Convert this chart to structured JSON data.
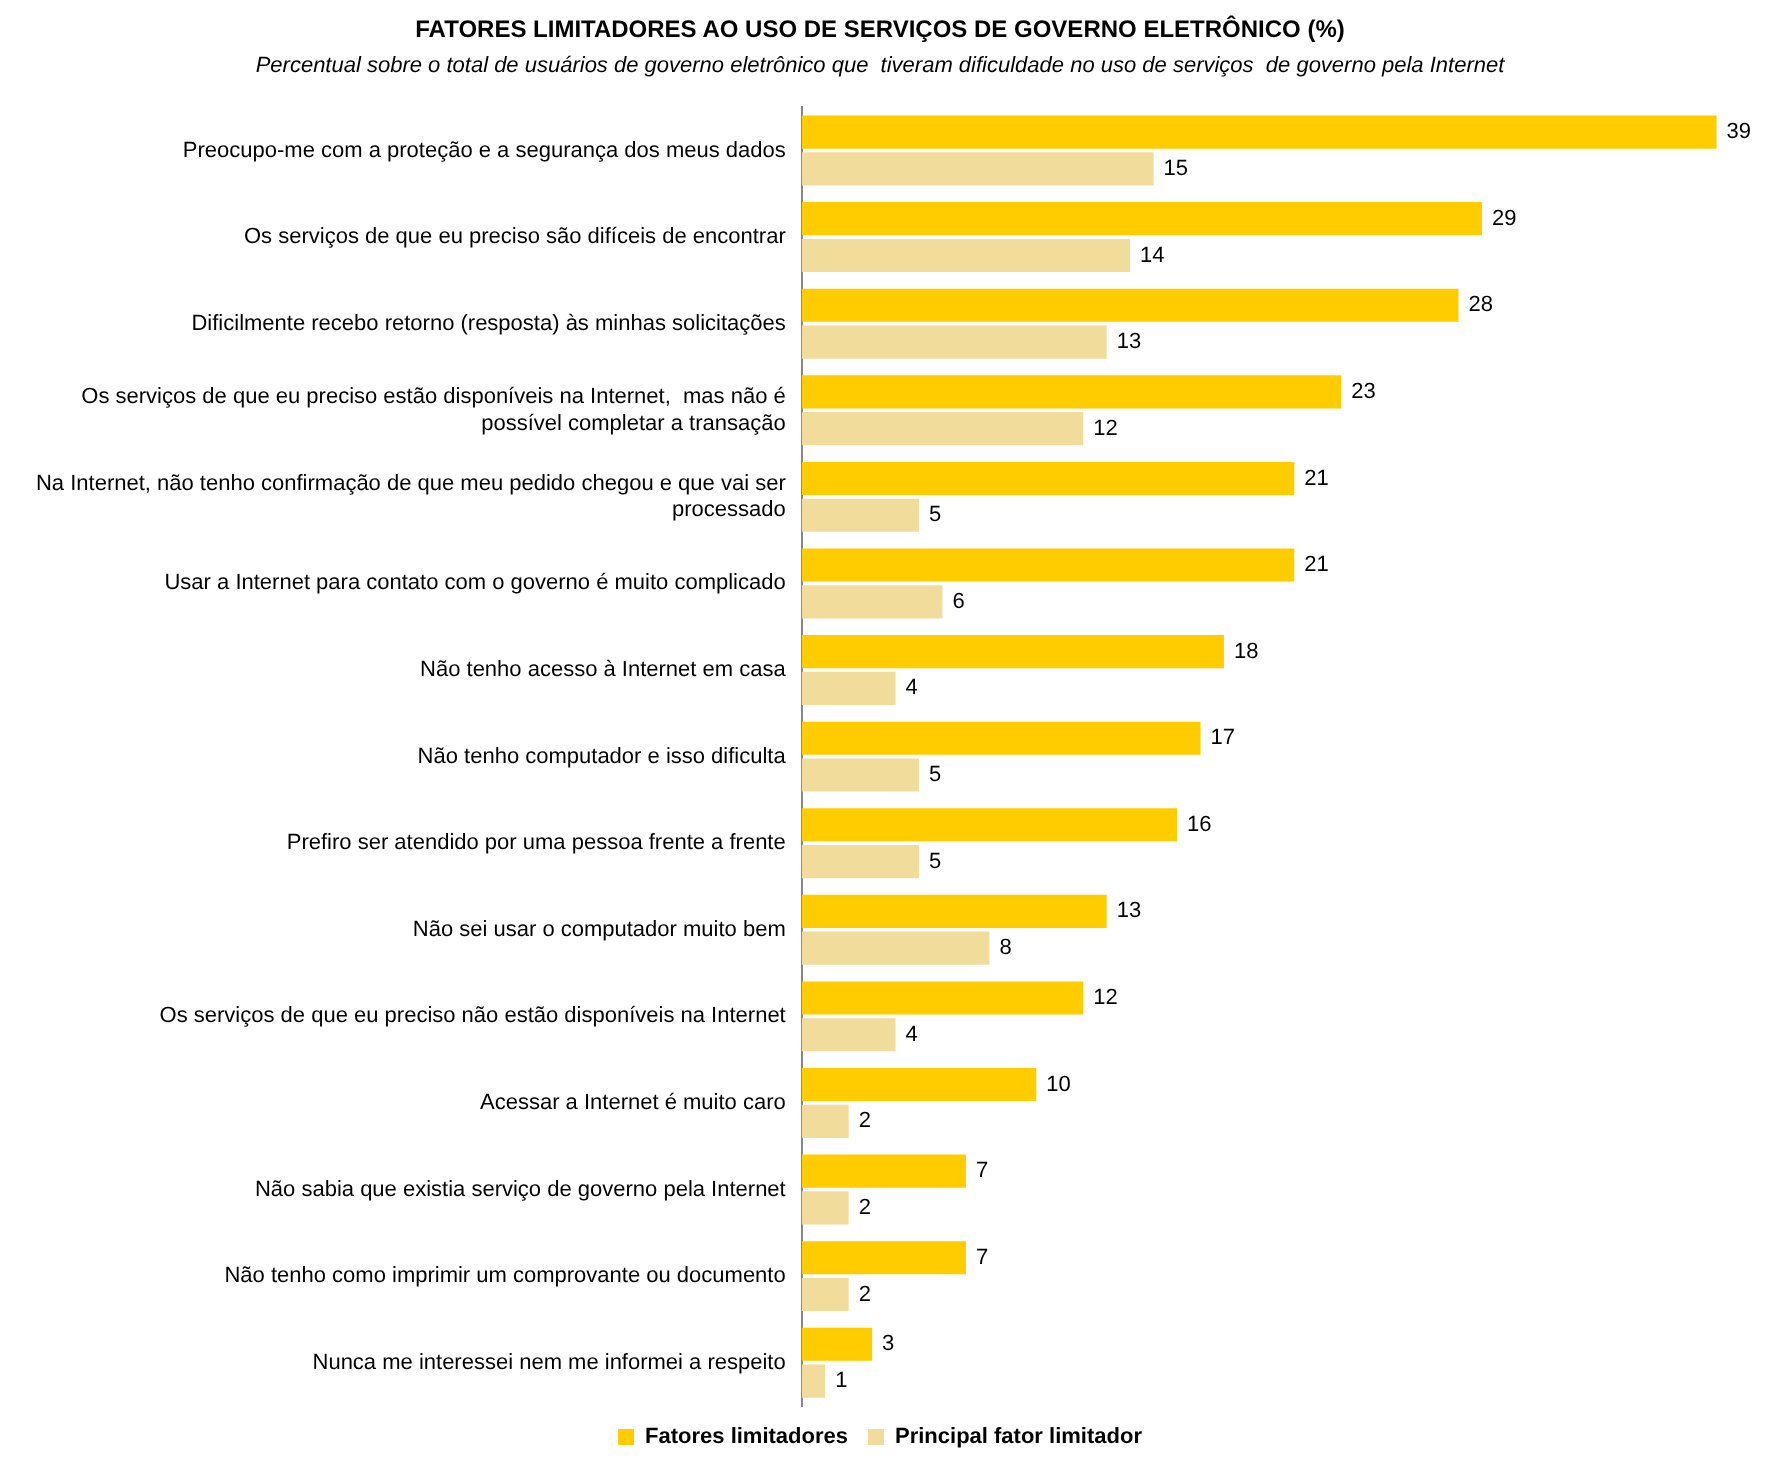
{
  "chart_data": {
    "type": "bar",
    "orientation": "horizontal",
    "title": "FATORES LIMITADORES AO USO DE SERVIÇOS DE GOVERNO ELETRÔNICO (%)",
    "subtitle": "Percentual sobre o total de usuários de governo eletrônico que  tiveram dificuldade no uso de serviços  de governo pela Internet",
    "categories": [
      "Preocupo-me com a proteção e a segurança dos meus dados",
      "Os serviços de que eu preciso são difíceis de encontrar",
      "Dificilmente recebo retorno (resposta) às minhas solicitações",
      "Os serviços de que eu preciso estão disponíveis na Internet,  mas não é possível completar a transação",
      "Na Internet, não tenho confirmação de que meu pedido chegou e que vai ser processado",
      "Usar a Internet para contato com o governo é muito complicado",
      "Não tenho acesso à Internet em casa",
      "Não tenho computador e isso dificulta",
      "Prefiro ser atendido por uma pessoa frente a frente",
      "Não sei usar o computador muito bem",
      "Os serviços de que eu preciso não estão disponíveis na Internet",
      "Acessar a Internet é muito caro",
      "Não sabia que existia serviço de governo pela Internet",
      "Não tenho como imprimir um comprovante ou documento",
      "Nunca me interessei nem me informei a respeito"
    ],
    "series": [
      {
        "name": "Fatores limitadores",
        "color": "#ffcc00",
        "values": [
          39,
          29,
          28,
          23,
          21,
          21,
          18,
          17,
          16,
          13,
          12,
          10,
          7,
          7,
          3
        ]
      },
      {
        "name": "Principal fator limitador",
        "color": "#f2dc9b",
        "values": [
          15,
          14,
          13,
          12,
          5,
          6,
          4,
          5,
          5,
          8,
          4,
          2,
          2,
          2,
          1
        ]
      }
    ],
    "data_labels": true,
    "legend": "bottom"
  }
}
